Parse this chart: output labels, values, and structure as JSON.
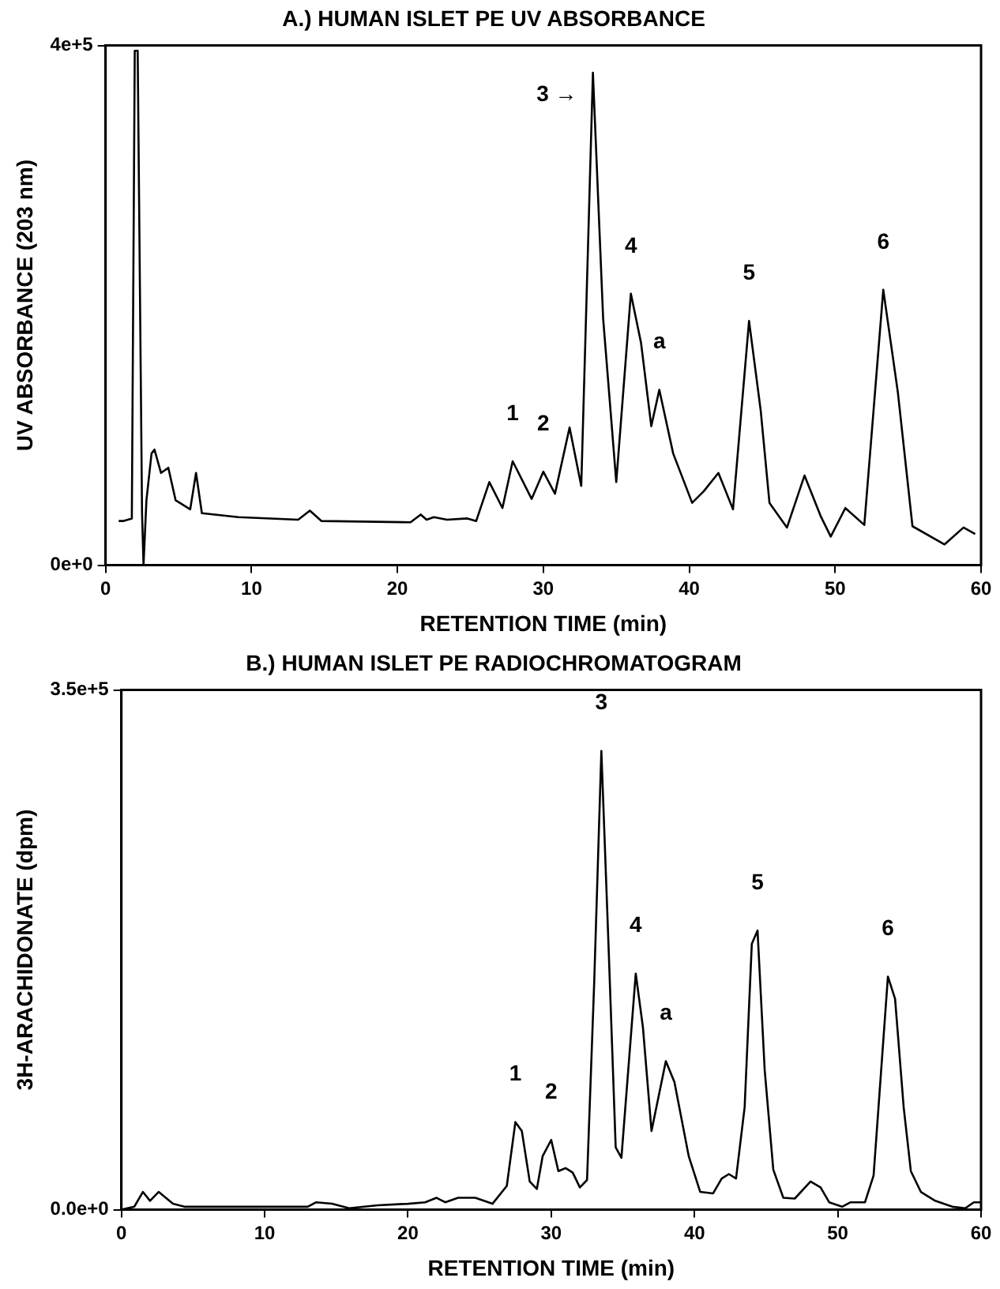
{
  "chart_data": [
    {
      "type": "line",
      "title": "A.) HUMAN ISLET PE UV ABSORBANCE",
      "xlabel": "RETENTION TIME (min)",
      "ylabel": "UV ABSORBANCE (203 nm)",
      "series": [
        {
          "color": "#000000",
          "x": [
            0.9,
            1.2,
            1.8,
            2.0,
            2.2,
            2.5,
            2.6,
            2.8,
            3.15,
            3.35,
            3.8,
            4.3,
            4.8,
            5.8,
            6.2,
            6.6,
            9.1,
            13.2,
            14.0,
            14.8,
            20.9,
            21.6,
            22.0,
            22.5,
            23.4,
            24.8,
            25.4,
            26.3,
            27.2,
            27.9,
            29.2,
            30.0,
            30.8,
            31.8,
            32.6,
            33.4,
            34.1,
            35.0,
            36.0,
            36.7,
            37.4,
            37.95,
            38.9,
            40.2,
            41.0,
            42.0,
            43.0,
            44.1,
            44.9,
            45.5,
            46.7,
            47.9,
            49.0,
            49.7,
            50.7,
            52.0,
            53.3,
            54.3,
            55.3,
            57.5,
            58.8,
            59.6
          ],
          "values": [
            34000,
            34000,
            36000,
            396000,
            396000,
            40000,
            0,
            50000,
            86000,
            89000,
            71000,
            75000,
            50000,
            43000,
            71000,
            40000,
            37000,
            35000,
            42000,
            34000,
            33000,
            39000,
            35000,
            37000,
            35000,
            36000,
            34000,
            64000,
            44000,
            80000,
            51000,
            72000,
            55000,
            106000,
            61000,
            379000,
            190000,
            64000,
            209000,
            171000,
            107000,
            135000,
            86000,
            48000,
            57000,
            71000,
            43000,
            188000,
            119000,
            48000,
            29000,
            69000,
            38000,
            22000,
            44000,
            31000,
            212000,
            133000,
            30000,
            16000,
            29000,
            24000
          ]
        }
      ],
      "xlim": [
        0,
        60
      ],
      "xticks": [
        0,
        10,
        20,
        30,
        40,
        50,
        60
      ],
      "ylim": [
        0,
        400000
      ],
      "yticks": [
        {
          "value": 0,
          "label": "0e+0"
        },
        {
          "value": 400000,
          "label": "4e+5"
        }
      ],
      "grid": false,
      "legend": false,
      "marker": "none",
      "line_style": "solid",
      "annotations": [
        {
          "text": "1",
          "x": 27.9,
          "y": 80000
        },
        {
          "text": "2",
          "x": 30.0,
          "y": 72000
        },
        {
          "text": "3 →",
          "x": 33.4,
          "y": 379000
        },
        {
          "text": "4",
          "x": 36.0,
          "y": 209000
        },
        {
          "text": "a",
          "x": 37.95,
          "y": 135000
        },
        {
          "text": "5",
          "x": 44.1,
          "y": 188000
        },
        {
          "text": "6",
          "x": 53.3,
          "y": 212000
        }
      ]
    },
    {
      "type": "line",
      "title": "B.) HUMAN ISLET PE RADIOCHROMATOGRAM",
      "xlabel": "RETENTION TIME (min)",
      "ylabel": "3H-ARACHIDONATE (dpm)",
      "series": [
        {
          "color": "#000000",
          "x": [
            0,
            0.9,
            1.5,
            2.0,
            2.6,
            3.6,
            4.4,
            13.0,
            13.6,
            14.7,
            15.9,
            17.9,
            20.0,
            21.2,
            22.0,
            22.6,
            23.5,
            24.7,
            25.9,
            26.9,
            27.5,
            27.95,
            28.5,
            29.0,
            29.4,
            30.0,
            30.5,
            31.0,
            31.5,
            32.0,
            32.5,
            33.0,
            33.5,
            34.0,
            34.5,
            34.9,
            35.9,
            36.4,
            37.0,
            38.0,
            38.6,
            39.6,
            40.4,
            41.3,
            41.9,
            42.4,
            42.9,
            43.5,
            44.0,
            44.4,
            44.9,
            45.5,
            46.2,
            47.0,
            48.1,
            48.8,
            49.4,
            50.3,
            50.9,
            51.9,
            52.5,
            53.0,
            53.5,
            54.0,
            54.6,
            55.1,
            55.8,
            56.8,
            58.0,
            58.9,
            59.5,
            60
          ],
          "values": [
            0,
            2000,
            12000,
            6000,
            12000,
            4000,
            2000,
            2000,
            5000,
            4000,
            1000,
            3000,
            4000,
            5000,
            8000,
            5000,
            8000,
            8000,
            4000,
            16000,
            59000,
            53000,
            19000,
            14000,
            36000,
            47000,
            26000,
            28000,
            25000,
            15000,
            20000,
            153000,
            309000,
            178000,
            42000,
            35000,
            159000,
            123000,
            53000,
            100000,
            86000,
            36000,
            12000,
            11000,
            21000,
            24000,
            21000,
            69000,
            179000,
            188000,
            94000,
            27000,
            8000,
            7500,
            19000,
            15000,
            5000,
            2000,
            5000,
            5000,
            23000,
            90000,
            157000,
            142000,
            69000,
            26000,
            12000,
            6000,
            2000,
            1000,
            5000,
            5000
          ]
        }
      ],
      "xlim": [
        0,
        60
      ],
      "xticks": [
        0,
        10,
        20,
        30,
        40,
        50,
        60
      ],
      "ylim": [
        0,
        350000
      ],
      "yticks": [
        {
          "value": 0,
          "label": "0.0e+0"
        },
        {
          "value": 350000,
          "label": "3.5e+5"
        }
      ],
      "grid": false,
      "legend": false,
      "marker": "none",
      "line_style": "solid",
      "annotations": [
        {
          "text": "1",
          "x": 27.5,
          "y": 59000
        },
        {
          "text": "2",
          "x": 30.0,
          "y": 47000
        },
        {
          "text": "3",
          "x": 33.5,
          "y": 309000
        },
        {
          "text": "4",
          "x": 35.9,
          "y": 159000
        },
        {
          "text": "a",
          "x": 38.0,
          "y": 100000
        },
        {
          "text": "5",
          "x": 44.4,
          "y": 188000
        },
        {
          "text": "6",
          "x": 53.5,
          "y": 157000
        }
      ]
    }
  ]
}
